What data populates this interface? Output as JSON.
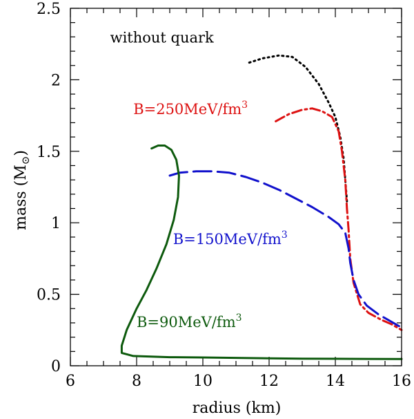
{
  "chart_data": {
    "type": "line",
    "title": "",
    "xlabel": "radius (km)",
    "ylabel_main": "mass (M",
    "ylabel_sub": "⊙",
    "ylabel_close": ")",
    "xlim": [
      6,
      16
    ],
    "ylim": [
      0,
      2.5
    ],
    "x_ticks": [
      6,
      8,
      10,
      12,
      14,
      16
    ],
    "y_ticks": [
      0,
      0.5,
      1,
      1.5,
      2,
      2.5
    ],
    "x_tick_labels": [
      "6",
      "8",
      "10",
      "12",
      "14",
      "16"
    ],
    "y_tick_labels": [
      "0",
      "0.5",
      "1",
      "1.5",
      "2",
      "2.5"
    ],
    "x_minor_step": 0.5,
    "y_minor_step": 0.1,
    "grid": false,
    "series": [
      {
        "name": "without quark",
        "color": "#000000",
        "dash": "2,5",
        "points": [
          [
            11.4,
            2.12
          ],
          [
            11.8,
            2.15
          ],
          [
            12.3,
            2.17
          ],
          [
            12.7,
            2.16
          ],
          [
            13.1,
            2.09
          ],
          [
            13.5,
            1.97
          ],
          [
            13.8,
            1.84
          ],
          [
            14.0,
            1.74
          ],
          [
            14.15,
            1.6
          ],
          [
            14.25,
            1.45
          ],
          [
            14.3,
            1.3
          ],
          [
            14.35,
            1.15
          ]
        ]
      },
      {
        "name": "B=250MeV/fm3",
        "color": "#dd1111",
        "dash": "14,5,3,5",
        "points": [
          [
            12.2,
            1.71
          ],
          [
            12.6,
            1.76
          ],
          [
            13.0,
            1.79
          ],
          [
            13.3,
            1.8
          ],
          [
            13.6,
            1.78
          ],
          [
            13.9,
            1.74
          ],
          [
            14.1,
            1.64
          ],
          [
            14.2,
            1.5
          ],
          [
            14.3,
            1.3
          ],
          [
            14.35,
            1.1
          ],
          [
            14.4,
            0.95
          ],
          [
            14.45,
            0.75
          ],
          [
            14.55,
            0.58
          ],
          [
            14.75,
            0.43
          ],
          [
            15.0,
            0.37
          ],
          [
            15.4,
            0.32
          ],
          [
            15.7,
            0.29
          ],
          [
            16.0,
            0.25
          ]
        ]
      },
      {
        "name": "B=150MeV/fm3",
        "color": "#1111cc",
        "dash": "26,9",
        "points": [
          [
            9.0,
            1.33
          ],
          [
            9.3,
            1.35
          ],
          [
            9.8,
            1.36
          ],
          [
            10.3,
            1.36
          ],
          [
            10.8,
            1.35
          ],
          [
            11.3,
            1.32
          ],
          [
            11.8,
            1.28
          ],
          [
            12.3,
            1.23
          ],
          [
            12.8,
            1.17
          ],
          [
            13.3,
            1.11
          ],
          [
            13.8,
            1.04
          ],
          [
            14.1,
            0.99
          ],
          [
            14.3,
            0.93
          ],
          [
            14.4,
            0.82
          ],
          [
            14.45,
            0.72
          ],
          [
            14.55,
            0.6
          ],
          [
            14.7,
            0.5
          ],
          [
            14.95,
            0.42
          ],
          [
            15.3,
            0.36
          ],
          [
            15.6,
            0.32
          ],
          [
            15.9,
            0.28
          ],
          [
            16.0,
            0.27
          ]
        ]
      },
      {
        "name": "B=90MeV/fm3",
        "color": "#0d5a0d",
        "dash": "",
        "points": [
          [
            8.45,
            1.52
          ],
          [
            8.65,
            1.54
          ],
          [
            8.85,
            1.54
          ],
          [
            9.05,
            1.51
          ],
          [
            9.2,
            1.44
          ],
          [
            9.28,
            1.33
          ],
          [
            9.25,
            1.18
          ],
          [
            9.12,
            1.02
          ],
          [
            8.9,
            0.85
          ],
          [
            8.6,
            0.68
          ],
          [
            8.3,
            0.53
          ],
          [
            8.0,
            0.4
          ],
          [
            7.7,
            0.25
          ],
          [
            7.55,
            0.14
          ],
          [
            7.55,
            0.09
          ],
          [
            7.9,
            0.068
          ],
          [
            9.0,
            0.06
          ],
          [
            10.0,
            0.058
          ],
          [
            11.0,
            0.055
          ],
          [
            12.0,
            0.052
          ],
          [
            13.0,
            0.05
          ],
          [
            14.0,
            0.049
          ],
          [
            15.0,
            0.048
          ],
          [
            16.0,
            0.047
          ]
        ]
      }
    ],
    "annotations": [
      {
        "text": "without quark",
        "x": 7.2,
        "y": 2.26,
        "color": "#000000"
      },
      {
        "text": "B=250MeV/fm",
        "sup": "3",
        "x": 7.9,
        "y": 1.76,
        "color": "#dd1111"
      },
      {
        "text": "B=150MeV/fm",
        "sup": "3",
        "x": 9.1,
        "y": 0.85,
        "color": "#1111cc"
      },
      {
        "text": "B=90MeV/fm",
        "sup": "3",
        "x": 8.0,
        "y": 0.27,
        "color": "#0d5a0d"
      }
    ]
  }
}
